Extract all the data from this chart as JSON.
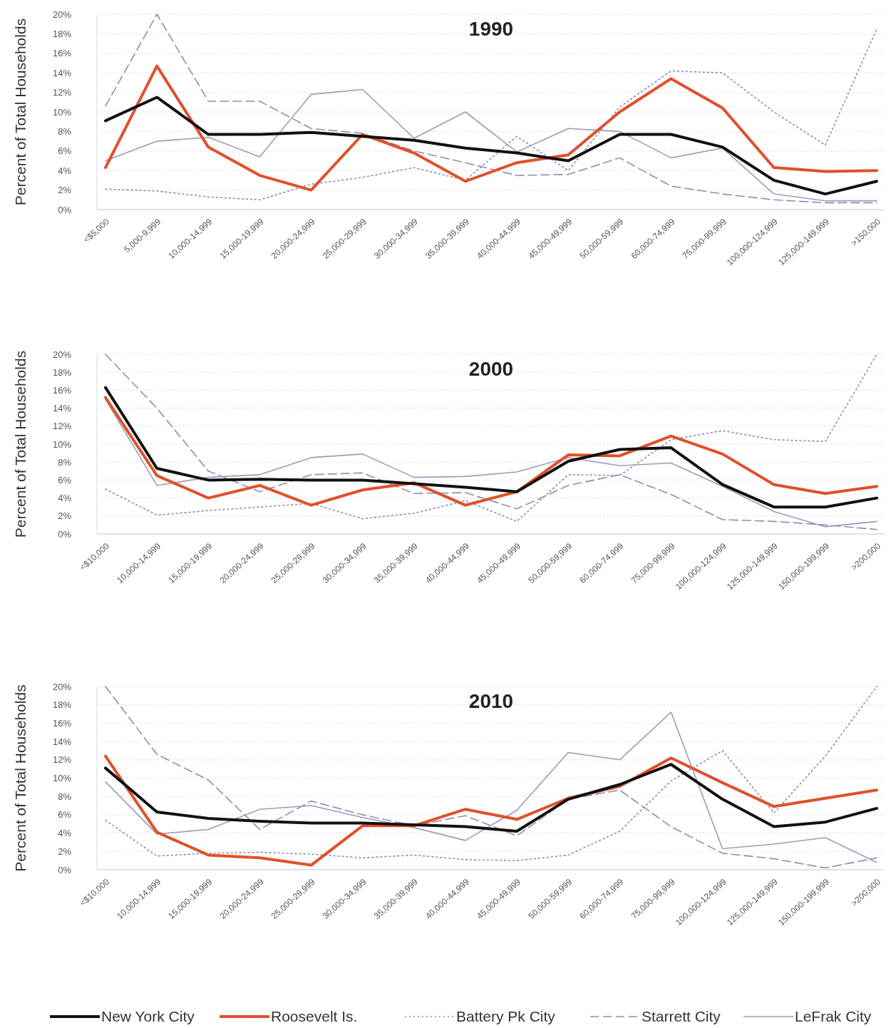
{
  "chart_data": [
    {
      "type": "line",
      "title": "1990",
      "ylabel": "Percent of Total Households",
      "categories": [
        "<$5,000",
        "5,000-9,999",
        "10,000-14,999",
        "15,000-19,999",
        "20,000-24,999",
        "25,000-29,999",
        "30,000-34,999",
        "35,000-39,999",
        "40,000-44,999",
        "45,000-49,999",
        "50,000-59,999",
        "60,000-74,999",
        "75,000-99,999",
        "100,000-124,999",
        "125,000-149,999",
        ">150,000"
      ],
      "ylim": [
        0,
        20
      ],
      "yticks": [
        {
          "value": 0,
          "label": "0%"
        },
        {
          "value": 2,
          "label": "2%"
        },
        {
          "value": 4,
          "label": "4%"
        },
        {
          "value": 6,
          "label": "6%"
        },
        {
          "value": 8,
          "label": "8%"
        },
        {
          "value": 10,
          "label": "10%"
        },
        {
          "value": 12,
          "label": "12%"
        },
        {
          "value": 14,
          "label": "14%"
        },
        {
          "value": 16,
          "label": "16%"
        },
        {
          "value": 18,
          "label": "18%"
        },
        {
          "value": 20,
          "label": "20%"
        }
      ],
      "grid": "y",
      "marker": "none",
      "legend": false,
      "series": [
        {
          "color": "#8a8fb0",
          "line_style": "dotted",
          "values": [
            2.1,
            1.9,
            1.3,
            1.0,
            2.6,
            3.3,
            4.3,
            3.0,
            7.5,
            4.0,
            10.5,
            14.2,
            14.0,
            10.0,
            6.6,
            18.5
          ]
        },
        {
          "color": "#8a8fb0",
          "line_style": "dashed",
          "values": [
            10.6,
            20,
            11.1,
            11.1,
            8.3,
            7.8,
            6.0,
            4.8,
            3.5,
            3.6,
            5.3,
            2.4,
            1.6,
            1.0,
            0.7,
            0.7
          ]
        },
        {
          "color": "#9a9db8",
          "line_style": "solid",
          "values": [
            5.0,
            7.0,
            7.4,
            5.4,
            11.8,
            12.3,
            7.3,
            10.0,
            5.9,
            8.3,
            8.0,
            5.3,
            6.3,
            1.6,
            0.9,
            0.9
          ]
        },
        {
          "color": "#e0502a",
          "line_style": "solid",
          "values": [
            4.3,
            14.7,
            6.4,
            3.5,
            2.0,
            7.7,
            5.8,
            2.9,
            4.8,
            5.6,
            10.0,
            13.4,
            10.4,
            4.3,
            3.9,
            4.0
          ]
        },
        {
          "color": "#111111",
          "line_style": "solid",
          "values": [
            9.1,
            11.5,
            7.7,
            7.7,
            7.9,
            7.5,
            7.1,
            6.3,
            5.8,
            5.0,
            7.7,
            7.7,
            6.4,
            3.0,
            1.6,
            2.9
          ]
        }
      ]
    },
    {
      "type": "line",
      "title": "2000",
      "ylabel": "Percent of Total Households",
      "categories": [
        "<$10,000",
        "10,000-14,999",
        "15,000-19,999",
        "20,000-24,999",
        "25,000-29,999",
        "30,000-34,999",
        "35,000-39,999",
        "40,000-44,999",
        "45,000-49,999",
        "50,000-59,999",
        "60,000-74,999",
        "75,000-99,999",
        "100,000-124,999",
        "125,000-149,999",
        "150,000-199,999",
        ">200,000"
      ],
      "ylim": [
        0,
        20
      ],
      "yticks": [
        {
          "value": 0,
          "label": "0%"
        },
        {
          "value": 2,
          "label": "2%"
        },
        {
          "value": 4,
          "label": "4%"
        },
        {
          "value": 6,
          "label": "6%"
        },
        {
          "value": 8,
          "label": "8%"
        },
        {
          "value": 10,
          "label": "10%"
        },
        {
          "value": 12,
          "label": "12%"
        },
        {
          "value": 14,
          "label": "14%"
        },
        {
          "value": 16,
          "label": "16%"
        },
        {
          "value": 18,
          "label": "18%"
        },
        {
          "value": 20,
          "label": "20%"
        }
      ],
      "grid": "y",
      "marker": "none",
      "legend": false,
      "series": [
        {
          "color": "#8a8fb0",
          "line_style": "dotted",
          "values": [
            5.0,
            2.1,
            2.6,
            3.0,
            3.4,
            1.7,
            2.3,
            3.7,
            1.4,
            6.6,
            6.5,
            10.5,
            11.5,
            10.5,
            10.3,
            20
          ]
        },
        {
          "color": "#8a8fb0",
          "line_style": "dashed",
          "values": [
            20,
            14.0,
            7.0,
            4.7,
            6.6,
            6.8,
            4.5,
            4.6,
            2.8,
            5.4,
            6.6,
            4.4,
            1.6,
            1.4,
            1.0,
            0.5
          ]
        },
        {
          "color": "#9a9db8",
          "line_style": "solid",
          "values": [
            15.0,
            5.4,
            6.3,
            6.6,
            8.5,
            8.9,
            6.3,
            6.4,
            6.9,
            8.5,
            7.6,
            7.9,
            5.3,
            2.5,
            0.8,
            1.4
          ]
        },
        {
          "color": "#e0502a",
          "line_style": "solid",
          "values": [
            15.2,
            6.5,
            4.0,
            5.4,
            3.2,
            4.9,
            5.7,
            3.2,
            4.7,
            8.8,
            8.7,
            10.9,
            8.9,
            5.5,
            4.5,
            5.3
          ]
        },
        {
          "color": "#111111",
          "line_style": "solid",
          "values": [
            16.3,
            7.3,
            6.0,
            6.1,
            6.0,
            6.0,
            5.6,
            5.2,
            4.7,
            8.1,
            9.4,
            9.6,
            5.5,
            3.0,
            3.0,
            4.0
          ]
        }
      ]
    },
    {
      "type": "line",
      "title": "2010",
      "ylabel": "Percent of Total Households",
      "categories": [
        "<$10,000",
        "10,000-14,999",
        "15,000-19,999",
        "20,000-24,999",
        "25,000-29,999",
        "30,000-34,999",
        "35,000-39,999",
        "40,000-44,999",
        "45,000-49,999",
        "50,000-59,999",
        "60,000-74,999",
        "75,000-99,999",
        "100,000-124,999",
        "125,000-149,999",
        "150,000-199,999",
        ">200,000"
      ],
      "ylim": [
        0,
        20
      ],
      "yticks": [
        {
          "value": 0,
          "label": "0%"
        },
        {
          "value": 2,
          "label": "2%"
        },
        {
          "value": 4,
          "label": "4%"
        },
        {
          "value": 6,
          "label": "6%"
        },
        {
          "value": 8,
          "label": "8%"
        },
        {
          "value": 10,
          "label": "10%"
        },
        {
          "value": 12,
          "label": "12%"
        },
        {
          "value": 14,
          "label": "14%"
        },
        {
          "value": 16,
          "label": "16%"
        },
        {
          "value": 18,
          "label": "18%"
        },
        {
          "value": 20,
          "label": "20%"
        }
      ],
      "grid": "y",
      "marker": "none",
      "legend": "bottom",
      "series": [
        {
          "name": "Battery Pk City",
          "color": "#8a8fb0",
          "line_style": "dotted",
          "values": [
            5.4,
            1.5,
            1.8,
            1.9,
            1.7,
            1.3,
            1.6,
            1.1,
            1.0,
            1.6,
            4.2,
            9.7,
            13.0,
            6.2,
            12.4,
            20
          ]
        },
        {
          "name": "Starrett City",
          "color": "#8a8fb0",
          "line_style": "dashed",
          "values": [
            20,
            12.6,
            9.8,
            4.4,
            7.5,
            6.0,
            4.8,
            5.9,
            3.7,
            7.7,
            8.7,
            4.7,
            1.8,
            1.2,
            0.2,
            1.3
          ]
        },
        {
          "name": "LeFrak City",
          "color": "#9a9db8",
          "line_style": "solid",
          "values": [
            9.6,
            3.9,
            4.4,
            6.6,
            7.0,
            5.7,
            4.6,
            3.2,
            6.5,
            12.8,
            12.0,
            17.2,
            2.3,
            2.8,
            3.5,
            0.8
          ]
        },
        {
          "name": "Roosevelt Is.",
          "color": "#e0502a",
          "line_style": "solid",
          "values": [
            12.4,
            4.1,
            1.6,
            1.3,
            0.5,
            4.8,
            4.8,
            6.6,
            5.5,
            7.8,
            9.1,
            12.2,
            9.5,
            6.9,
            7.8,
            8.7
          ]
        },
        {
          "name": "New York City",
          "color": "#111111",
          "line_style": "solid",
          "values": [
            11.1,
            6.3,
            5.6,
            5.3,
            5.1,
            5.1,
            4.9,
            4.7,
            4.2,
            7.7,
            9.3,
            11.5,
            7.7,
            4.7,
            5.2,
            6.7
          ]
        }
      ]
    }
  ]
}
